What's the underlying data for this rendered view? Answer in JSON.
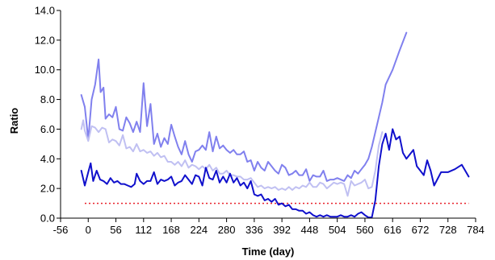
{
  "chart_data": {
    "type": "line",
    "title": "",
    "xlabel": "Time (day)",
    "ylabel": "Ratio",
    "xlim": [
      -56,
      784
    ],
    "ylim": [
      0,
      14
    ],
    "x_ticks": [
      -56,
      0,
      56,
      112,
      168,
      224,
      280,
      336,
      392,
      448,
      504,
      560,
      616,
      672,
      728,
      784
    ],
    "x_tick_labels": [
      "-56",
      "0",
      "56",
      "112",
      "168",
      "224",
      "280",
      "336",
      "392",
      "448",
      "504",
      "560",
      "616",
      "672",
      "728",
      "784"
    ],
    "y_ticks": [
      0,
      2,
      4,
      6,
      8,
      10,
      12,
      14
    ],
    "y_tick_labels": [
      "0.0",
      "2.0",
      "4.0",
      "6.0",
      "8.0",
      "10.0",
      "12.0",
      "14.0"
    ],
    "grid": false,
    "legend": "none",
    "reference_line": {
      "y": 1.0,
      "color": "#e8202a",
      "style": "dotted"
    },
    "series": [
      {
        "color": "#8080ee",
        "points": [
          [
            -14,
            8.3
          ],
          [
            -7,
            7.5
          ],
          [
            0,
            5.3
          ],
          [
            7,
            8.0
          ],
          [
            14,
            9.0
          ],
          [
            21,
            10.7
          ],
          [
            25,
            8.5
          ],
          [
            31,
            8.8
          ],
          [
            35,
            6.7
          ],
          [
            42,
            7.0
          ],
          [
            49,
            6.8
          ],
          [
            56,
            7.5
          ],
          [
            63,
            6.0
          ],
          [
            70,
            5.9
          ],
          [
            77,
            6.8
          ],
          [
            84,
            6.4
          ],
          [
            91,
            5.8
          ],
          [
            98,
            6.5
          ],
          [
            105,
            5.8
          ],
          [
            112,
            9.1
          ],
          [
            119,
            6.2
          ],
          [
            126,
            7.7
          ],
          [
            133,
            5.0
          ],
          [
            140,
            5.7
          ],
          [
            147,
            4.8
          ],
          [
            154,
            5.4
          ],
          [
            161,
            5.0
          ],
          [
            168,
            6.3
          ],
          [
            175,
            5.5
          ],
          [
            182,
            4.8
          ],
          [
            189,
            4.3
          ],
          [
            196,
            5.2
          ],
          [
            203,
            4.3
          ],
          [
            210,
            3.8
          ],
          [
            217,
            4.5
          ],
          [
            224,
            4.6
          ],
          [
            231,
            4.9
          ],
          [
            238,
            4.6
          ],
          [
            245,
            5.8
          ],
          [
            252,
            4.5
          ],
          [
            259,
            5.5
          ],
          [
            266,
            4.7
          ],
          [
            273,
            4.9
          ],
          [
            280,
            4.6
          ],
          [
            287,
            4.4
          ],
          [
            294,
            4.6
          ],
          [
            301,
            4.3
          ],
          [
            308,
            4.3
          ],
          [
            315,
            4.5
          ],
          [
            322,
            3.8
          ],
          [
            329,
            3.9
          ],
          [
            336,
            3.2
          ],
          [
            343,
            3.8
          ],
          [
            350,
            3.4
          ],
          [
            357,
            3.2
          ],
          [
            364,
            3.8
          ],
          [
            371,
            3.5
          ],
          [
            378,
            3.2
          ],
          [
            385,
            3.0
          ],
          [
            392,
            3.6
          ],
          [
            399,
            3.4
          ],
          [
            406,
            2.9
          ],
          [
            413,
            3.0
          ],
          [
            420,
            3.2
          ],
          [
            427,
            2.9
          ],
          [
            434,
            2.9
          ],
          [
            441,
            3.3
          ],
          [
            448,
            2.5
          ],
          [
            455,
            2.9
          ],
          [
            462,
            2.8
          ],
          [
            469,
            2.8
          ],
          [
            476,
            3.2
          ],
          [
            483,
            2.5
          ],
          [
            490,
            2.6
          ],
          [
            497,
            2.6
          ],
          [
            504,
            2.7
          ],
          [
            511,
            2.6
          ],
          [
            518,
            2.5
          ],
          [
            525,
            2.9
          ],
          [
            532,
            2.7
          ],
          [
            539,
            3.2
          ],
          [
            546,
            3.0
          ],
          [
            553,
            3.3
          ],
          [
            560,
            3.6
          ],
          [
            567,
            4.0
          ],
          [
            574,
            4.8
          ],
          [
            581,
            5.8
          ],
          [
            588,
            6.8
          ],
          [
            595,
            7.8
          ],
          [
            602,
            9.0
          ],
          [
            616,
            10.0
          ],
          [
            630,
            11.3
          ],
          [
            644,
            12.5
          ]
        ]
      },
      {
        "color": "#c0c0f2",
        "points": [
          [
            -14,
            6.0
          ],
          [
            -10,
            6.6
          ],
          [
            -7,
            5.9
          ],
          [
            0,
            5.2
          ],
          [
            7,
            6.2
          ],
          [
            14,
            6.1
          ],
          [
            21,
            5.8
          ],
          [
            28,
            6.1
          ],
          [
            35,
            6.0
          ],
          [
            42,
            5.1
          ],
          [
            49,
            5.3
          ],
          [
            56,
            5.2
          ],
          [
            63,
            4.9
          ],
          [
            70,
            5.6
          ],
          [
            77,
            4.7
          ],
          [
            84,
            4.8
          ],
          [
            91,
            4.5
          ],
          [
            98,
            5.0
          ],
          [
            105,
            4.5
          ],
          [
            112,
            4.6
          ],
          [
            119,
            4.4
          ],
          [
            126,
            4.5
          ],
          [
            133,
            4.2
          ],
          [
            140,
            4.4
          ],
          [
            147,
            4.1
          ],
          [
            154,
            4.2
          ],
          [
            161,
            3.8
          ],
          [
            168,
            3.8
          ],
          [
            175,
            3.6
          ],
          [
            182,
            3.8
          ],
          [
            189,
            3.5
          ],
          [
            196,
            3.9
          ],
          [
            203,
            3.4
          ],
          [
            210,
            3.6
          ],
          [
            217,
            3.5
          ],
          [
            224,
            3.3
          ],
          [
            231,
            3.5
          ],
          [
            238,
            3.3
          ],
          [
            245,
            3.6
          ],
          [
            252,
            3.2
          ],
          [
            259,
            3.4
          ],
          [
            266,
            3.0
          ],
          [
            273,
            3.0
          ],
          [
            280,
            3.2
          ],
          [
            287,
            2.9
          ],
          [
            294,
            2.9
          ],
          [
            301,
            2.8
          ],
          [
            308,
            2.8
          ],
          [
            315,
            2.6
          ],
          [
            322,
            2.6
          ],
          [
            329,
            2.7
          ],
          [
            336,
            2.4
          ],
          [
            343,
            2.1
          ],
          [
            350,
            2.2
          ],
          [
            357,
            2.0
          ],
          [
            364,
            2.1
          ],
          [
            371,
            2.0
          ],
          [
            378,
            2.1
          ],
          [
            385,
            1.9
          ],
          [
            392,
            2.0
          ],
          [
            399,
            1.9
          ],
          [
            406,
            2.1
          ],
          [
            413,
            1.9
          ],
          [
            420,
            2.1
          ],
          [
            427,
            2.0
          ],
          [
            434,
            2.2
          ],
          [
            441,
            2.1
          ],
          [
            448,
            2.4
          ],
          [
            455,
            2.1
          ],
          [
            462,
            2.1
          ],
          [
            469,
            2.4
          ],
          [
            476,
            2.3
          ],
          [
            483,
            2.0
          ],
          [
            490,
            2.2
          ],
          [
            497,
            2.4
          ],
          [
            504,
            2.3
          ],
          [
            511,
            2.4
          ],
          [
            518,
            2.3
          ],
          [
            525,
            1.5
          ],
          [
            532,
            2.5
          ],
          [
            539,
            2.2
          ],
          [
            546,
            2.3
          ],
          [
            553,
            2.4
          ],
          [
            560,
            2.6
          ],
          [
            567,
            2.0
          ],
          [
            574,
            2.1
          ],
          [
            581,
            3.2
          ],
          [
            588,
            4.9
          ],
          [
            595,
            5.8
          ]
        ]
      },
      {
        "color": "#1010cc",
        "points": [
          [
            -14,
            3.2
          ],
          [
            -7,
            2.2
          ],
          [
            0,
            3.1
          ],
          [
            5,
            3.7
          ],
          [
            10,
            2.5
          ],
          [
            17,
            3.2
          ],
          [
            24,
            2.6
          ],
          [
            31,
            2.5
          ],
          [
            38,
            2.3
          ],
          [
            45,
            2.7
          ],
          [
            52,
            2.4
          ],
          [
            59,
            2.5
          ],
          [
            66,
            2.3
          ],
          [
            73,
            2.3
          ],
          [
            80,
            2.2
          ],
          [
            87,
            2.1
          ],
          [
            94,
            2.3
          ],
          [
            98,
            3.0
          ],
          [
            105,
            2.5
          ],
          [
            112,
            2.3
          ],
          [
            119,
            2.5
          ],
          [
            126,
            2.5
          ],
          [
            133,
            3.1
          ],
          [
            140,
            2.3
          ],
          [
            147,
            2.6
          ],
          [
            154,
            2.5
          ],
          [
            161,
            2.6
          ],
          [
            168,
            2.8
          ],
          [
            175,
            2.2
          ],
          [
            182,
            2.4
          ],
          [
            189,
            2.5
          ],
          [
            196,
            2.9
          ],
          [
            203,
            2.6
          ],
          [
            210,
            2.3
          ],
          [
            217,
            2.9
          ],
          [
            224,
            2.8
          ],
          [
            231,
            2.2
          ],
          [
            238,
            3.4
          ],
          [
            245,
            2.7
          ],
          [
            252,
            2.6
          ],
          [
            259,
            3.2
          ],
          [
            266,
            2.4
          ],
          [
            273,
            2.8
          ],
          [
            280,
            2.4
          ],
          [
            287,
            3.0
          ],
          [
            294,
            2.4
          ],
          [
            301,
            2.7
          ],
          [
            308,
            2.2
          ],
          [
            315,
            2.4
          ],
          [
            322,
            2.0
          ],
          [
            329,
            2.5
          ],
          [
            336,
            1.6
          ],
          [
            343,
            1.5
          ],
          [
            350,
            1.6
          ],
          [
            357,
            1.2
          ],
          [
            364,
            1.3
          ],
          [
            371,
            1.1
          ],
          [
            378,
            1.3
          ],
          [
            385,
            0.9
          ],
          [
            392,
            1.0
          ],
          [
            399,
            0.8
          ],
          [
            406,
            0.9
          ],
          [
            413,
            0.6
          ],
          [
            420,
            0.6
          ],
          [
            427,
            0.5
          ],
          [
            434,
            0.5
          ],
          [
            441,
            0.3
          ],
          [
            448,
            0.4
          ],
          [
            455,
            0.2
          ],
          [
            462,
            0.1
          ],
          [
            469,
            0.2
          ],
          [
            476,
            0.1
          ],
          [
            483,
            0.2
          ],
          [
            490,
            0.1
          ],
          [
            497,
            0.1
          ],
          [
            504,
            0.1
          ],
          [
            511,
            0.2
          ],
          [
            518,
            0.1
          ],
          [
            525,
            0.1
          ],
          [
            532,
            0.2
          ],
          [
            539,
            0.1
          ],
          [
            546,
            0.3
          ],
          [
            553,
            0.4
          ],
          [
            560,
            0.2
          ],
          [
            567,
            0.05
          ],
          [
            574,
            0.05
          ],
          [
            581,
            1.2
          ],
          [
            588,
            3.5
          ],
          [
            595,
            5.0
          ],
          [
            602,
            5.7
          ],
          [
            609,
            4.6
          ],
          [
            616,
            6.0
          ],
          [
            623,
            5.3
          ],
          [
            630,
            5.5
          ],
          [
            637,
            4.4
          ],
          [
            644,
            4.0
          ],
          [
            651,
            4.3
          ],
          [
            658,
            4.6
          ],
          [
            665,
            3.5
          ],
          [
            672,
            3.2
          ],
          [
            679,
            2.9
          ],
          [
            686,
            3.9
          ],
          [
            693,
            3.2
          ],
          [
            700,
            2.2
          ],
          [
            714,
            3.1
          ],
          [
            728,
            3.1
          ],
          [
            742,
            3.3
          ],
          [
            756,
            3.6
          ],
          [
            770,
            2.8
          ]
        ]
      }
    ]
  }
}
